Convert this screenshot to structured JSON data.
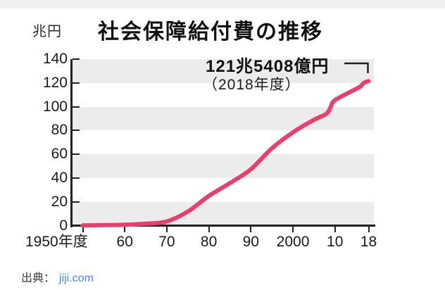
{
  "header": {
    "unit_label": "兆円",
    "title": "社会保障給付費の推移"
  },
  "source": {
    "label": "出典：",
    "link": "jiji.com"
  },
  "colors": {
    "line": "#e8406d",
    "band": "#ececec",
    "axis": "#222222",
    "text": "#1a1a1a",
    "link": "#4285f4"
  },
  "chart_data": {
    "type": "line",
    "title": "社会保障給付費の推移",
    "ylabel": "兆円",
    "ylim": [
      0,
      140
    ],
    "yticks": [
      140,
      120,
      100,
      80,
      60,
      40,
      20,
      0
    ],
    "xticks": [
      {
        "label": "1950年度",
        "year": 1950
      },
      {
        "label": "60",
        "year": 1960
      },
      {
        "label": "70",
        "year": 1970
      },
      {
        "label": "80",
        "year": 1980
      },
      {
        "label": "90",
        "year": 1990
      },
      {
        "label": "2000",
        "year": 2000
      },
      {
        "label": "10",
        "year": 2010
      },
      {
        "label": "18",
        "year": 2018
      }
    ],
    "grid": "alternating-horizontal-bands",
    "legend": "none",
    "series": [
      {
        "name": "社会保障給付費",
        "x": [
          1950,
          1955,
          1960,
          1965,
          1970,
          1975,
          1980,
          1985,
          1990,
          1995,
          2000,
          2005,
          2008,
          2009,
          2010,
          2015,
          2016,
          2017,
          2018
        ],
        "values": [
          0.1,
          0.4,
          0.7,
          1.6,
          3.5,
          11.8,
          24.9,
          35.7,
          47.4,
          65.0,
          78.4,
          88.9,
          94.1,
          99.9,
          105.4,
          114.9,
          116.9,
          120.2,
          121.5
        ]
      }
    ],
    "annotation": {
      "value_label": "121兆5408億円",
      "year_label": "（2018年度）",
      "x": 2018,
      "y": 121.5
    }
  }
}
